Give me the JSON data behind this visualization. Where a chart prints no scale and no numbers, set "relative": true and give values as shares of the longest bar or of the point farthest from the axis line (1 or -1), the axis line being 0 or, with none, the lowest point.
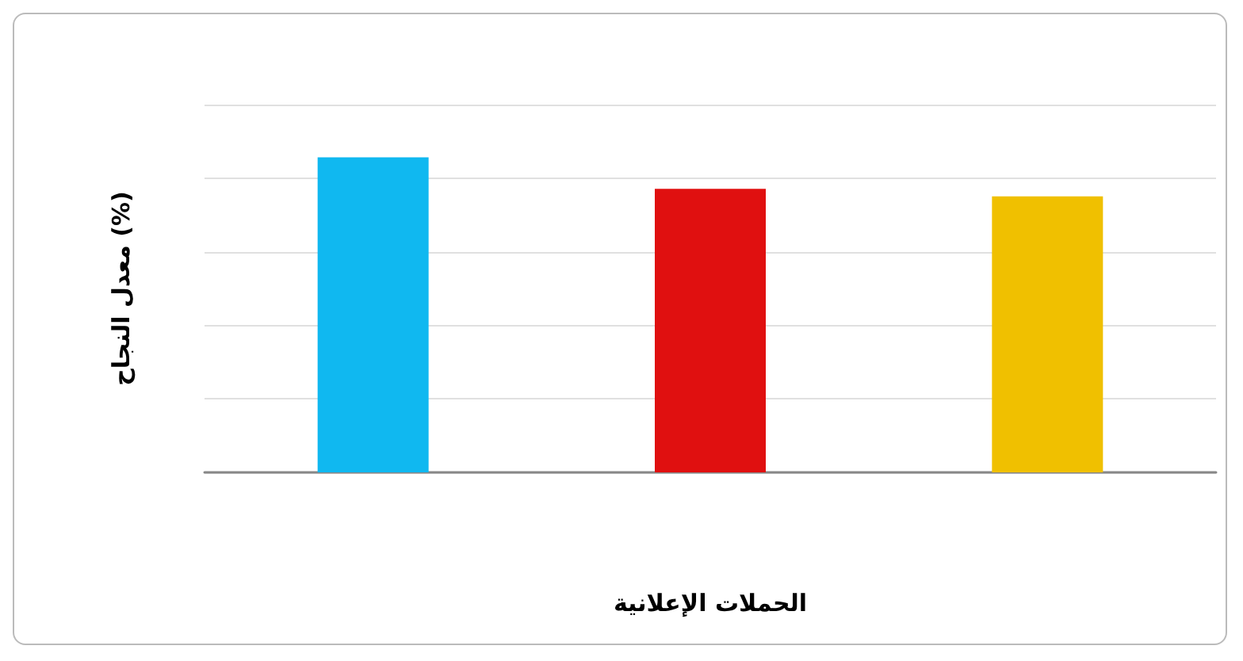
{
  "chart_data": {
    "type": "bar",
    "xlabel": "الحملات الإعلانية",
    "ylabel": "معدل النجاح (%)",
    "relative": true,
    "grid": "y",
    "categories": [
      null,
      null,
      null
    ],
    "values": [
      1,
      0.9,
      0.876
    ],
    "colors": [
      "#10b8f0",
      "#e01010",
      "#f0c000"
    ]
  }
}
